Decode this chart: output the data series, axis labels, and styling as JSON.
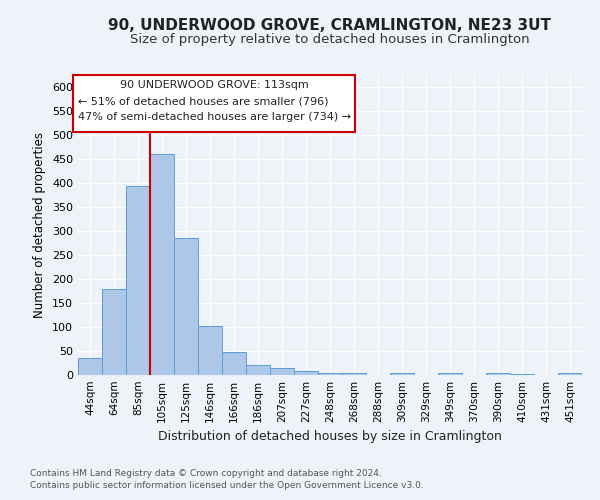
{
  "title": "90, UNDERWOOD GROVE, CRAMLINGTON, NE23 3UT",
  "subtitle": "Size of property relative to detached houses in Cramlington",
  "xlabel": "Distribution of detached houses by size in Cramlington",
  "ylabel": "Number of detached properties",
  "categories": [
    "44sqm",
    "64sqm",
    "85sqm",
    "105sqm",
    "125sqm",
    "146sqm",
    "166sqm",
    "186sqm",
    "207sqm",
    "227sqm",
    "248sqm",
    "268sqm",
    "288sqm",
    "309sqm",
    "329sqm",
    "349sqm",
    "370sqm",
    "390sqm",
    "410sqm",
    "431sqm",
    "451sqm"
  ],
  "values": [
    35,
    180,
    393,
    460,
    285,
    103,
    48,
    20,
    14,
    9,
    5,
    4,
    0,
    4,
    0,
    4,
    0,
    4,
    3,
    0,
    4
  ],
  "bar_color": "#aec6e8",
  "bar_edgecolor": "#5a9fd4",
  "vline_color": "#cc0000",
  "ylim": [
    0,
    625
  ],
  "yticks": [
    0,
    50,
    100,
    150,
    200,
    250,
    300,
    350,
    400,
    450,
    500,
    550,
    600
  ],
  "annotation_title": "90 UNDERWOOD GROVE: 113sqm",
  "annotation_line1": "← 51% of detached houses are smaller (796)",
  "annotation_line2": "47% of semi-detached houses are larger (734) →",
  "annotation_box_color": "#ffffff",
  "annotation_box_edgecolor": "#cc0000",
  "footnote1": "Contains HM Land Registry data © Crown copyright and database right 2024.",
  "footnote2": "Contains public sector information licensed under the Open Government Licence v3.0.",
  "background_color": "#eef2f9",
  "grid_color": "#ffffff",
  "title_fontsize": 11,
  "subtitle_fontsize": 9.5,
  "ylabel_fontsize": 8.5,
  "xlabel_fontsize": 9,
  "tick_fontsize": 7.5,
  "footnote_fontsize": 6.5
}
